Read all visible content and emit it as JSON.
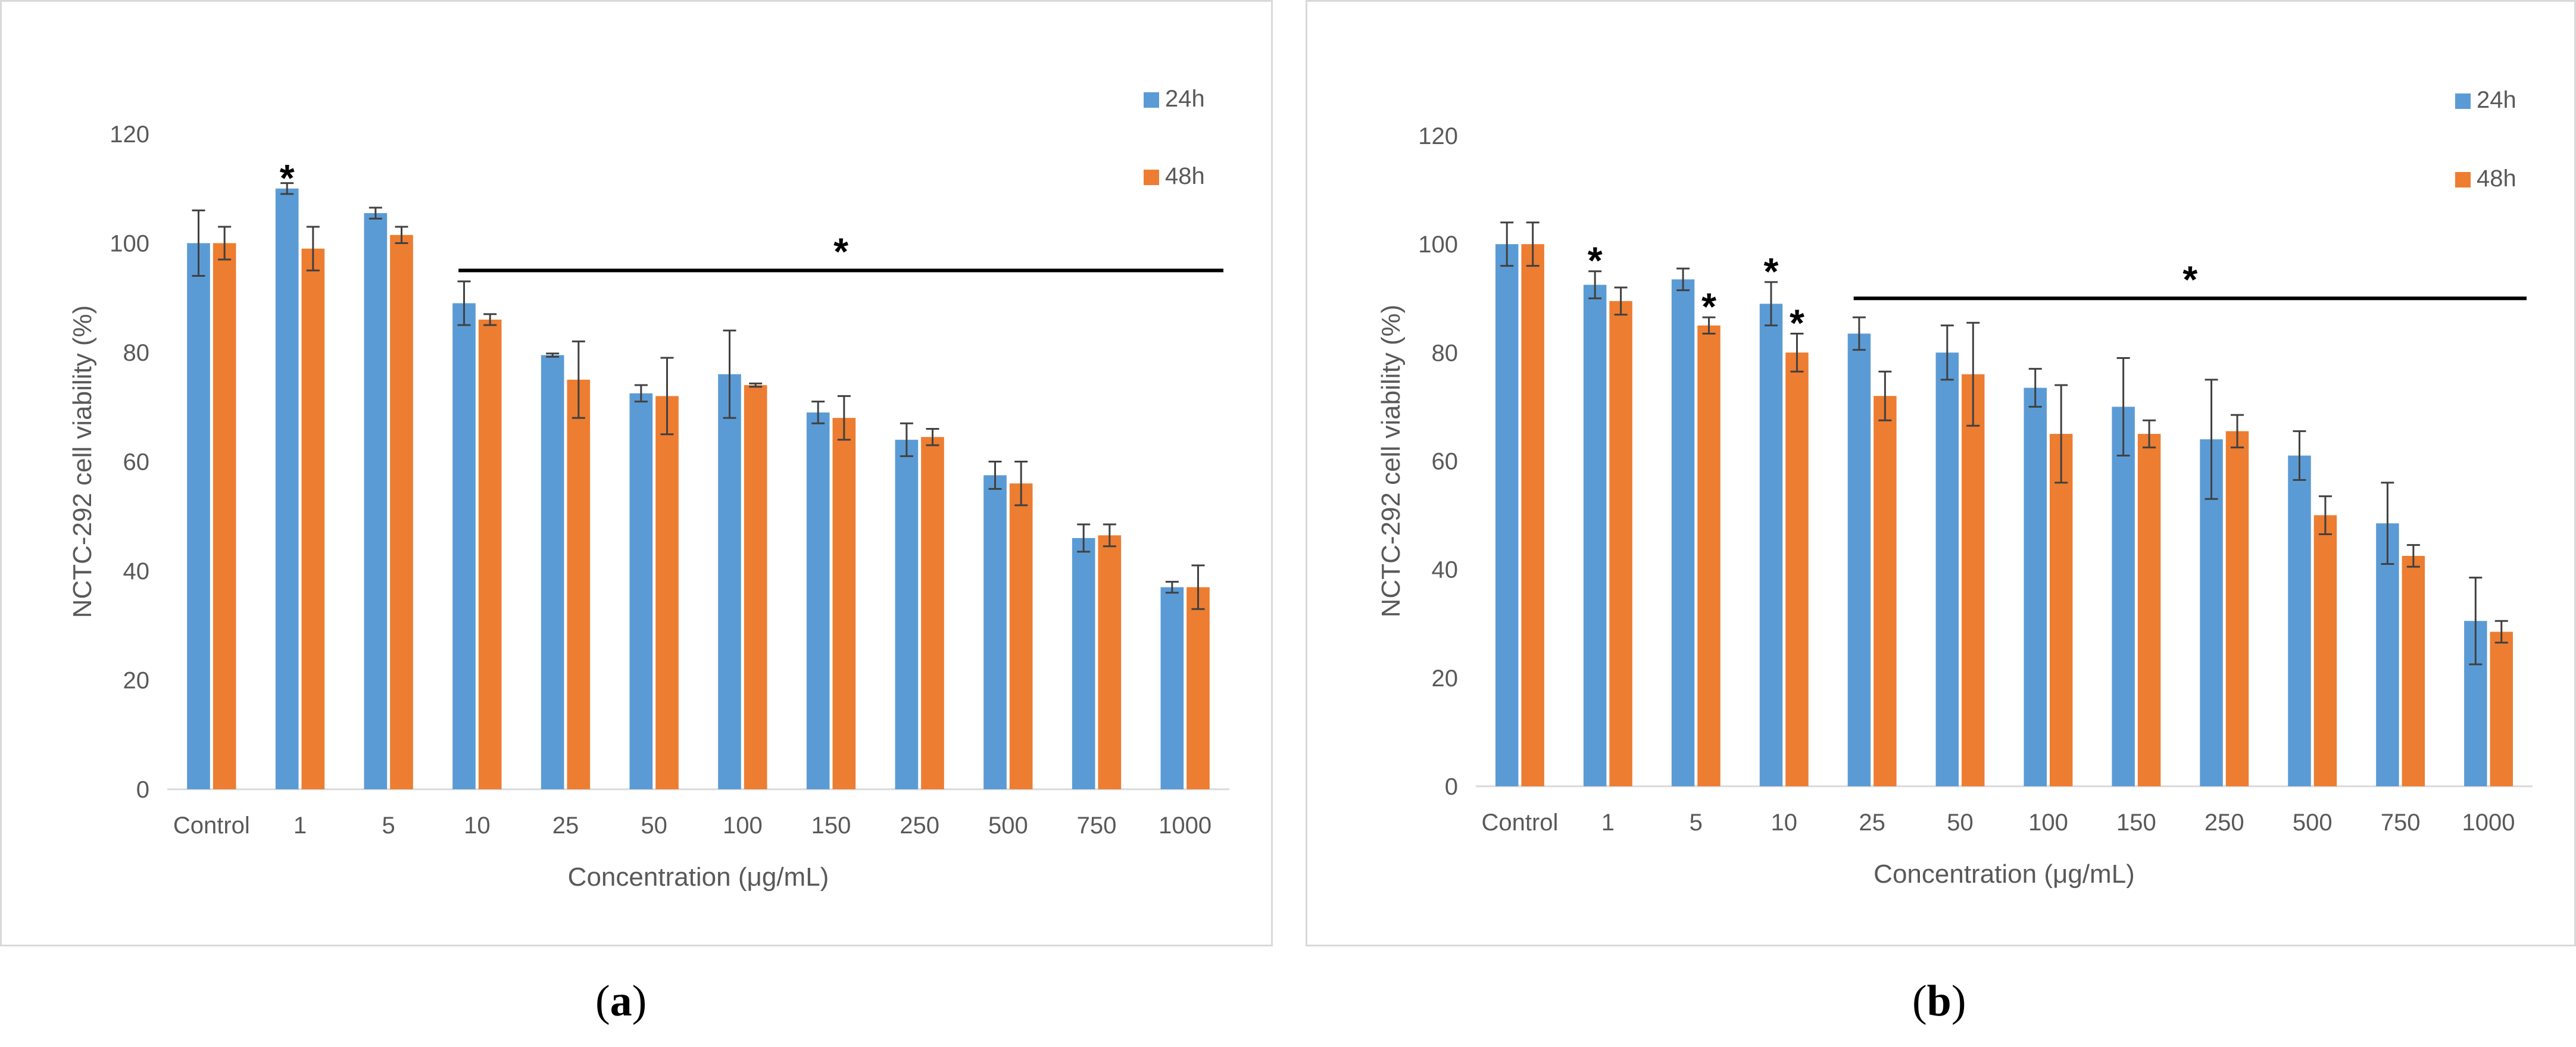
{
  "chart_data": [
    {
      "type": "bar",
      "panel_label": "a",
      "xlabel": "Concentration (μg/mL)",
      "ylabel": "NCTC-292 cell viability (%)",
      "ylim": [
        0,
        120
      ],
      "yticks": [
        0,
        20,
        40,
        60,
        80,
        100,
        120
      ],
      "grid": false,
      "legend_position": "top-right",
      "categories": [
        "Control",
        "1",
        "5",
        "10",
        "25",
        "50",
        "100",
        "150",
        "250",
        "500",
        "750",
        "1000"
      ],
      "series": [
        {
          "name": "24h",
          "color": "#5b9bd5",
          "values": [
            100,
            110,
            105.5,
            89,
            79.5,
            72.5,
            76,
            69,
            64,
            57.5,
            46,
            37
          ],
          "errors": [
            6,
            1,
            1,
            4,
            0.3,
            1.5,
            8,
            2,
            3,
            2.5,
            2.5,
            1
          ]
        },
        {
          "name": "48h",
          "color": "#ed7d31",
          "values": [
            100,
            99,
            101.5,
            86,
            75,
            72,
            74,
            68,
            64.5,
            56,
            46.5,
            37
          ],
          "errors": [
            3,
            4,
            1.5,
            1,
            7,
            7,
            0.3,
            4,
            1.5,
            4,
            2,
            4
          ]
        }
      ],
      "annotations": [
        {
          "text": "*",
          "type": "single",
          "category_index": 1,
          "series_index": 0,
          "value": 110
        },
        {
          "text": "*",
          "type": "bracket",
          "from_index": 3,
          "to_index": 11,
          "value": 95
        }
      ]
    },
    {
      "type": "bar",
      "panel_label": "b",
      "xlabel": "Concentration (μg/mL)",
      "ylabel": "NCTC-292 cell viability (%)",
      "ylim": [
        0,
        120
      ],
      "yticks": [
        0,
        20,
        40,
        60,
        80,
        100,
        120
      ],
      "grid": false,
      "legend_position": "top-right",
      "categories": [
        "Control",
        "1",
        "5",
        "10",
        "25",
        "50",
        "100",
        "150",
        "250",
        "500",
        "750",
        "1000"
      ],
      "series": [
        {
          "name": "24h",
          "color": "#5b9bd5",
          "values": [
            100,
            92.5,
            93.5,
            89,
            83.5,
            80,
            73.5,
            70,
            64,
            61,
            48.5,
            30.5
          ],
          "errors": [
            4,
            2.5,
            2,
            4,
            3,
            5,
            3.5,
            9,
            11,
            4.5,
            7.5,
            8
          ]
        },
        {
          "name": "48h",
          "color": "#ed7d31",
          "values": [
            100,
            89.5,
            85,
            80,
            72,
            76,
            65,
            65,
            65.5,
            50,
            42.5,
            28.5
          ],
          "errors": [
            4,
            2.5,
            1.5,
            3.5,
            4.5,
            9.5,
            9,
            2.5,
            3,
            3.5,
            2,
            2
          ]
        }
      ],
      "annotations": [
        {
          "text": "*",
          "type": "single",
          "category_index": 1,
          "series_index": 0,
          "value": 95
        },
        {
          "text": "*",
          "type": "single",
          "category_index": 2,
          "series_index": 1,
          "value": 86.5
        },
        {
          "text": "*",
          "type": "single",
          "category_index": 3,
          "series_index": 0,
          "value": 93
        },
        {
          "text": "*",
          "type": "single",
          "category_index": 3,
          "series_index": 1,
          "value": 83.5
        },
        {
          "text": "*",
          "type": "bracket",
          "from_index": 4,
          "to_index": 11,
          "value": 90
        }
      ]
    }
  ]
}
